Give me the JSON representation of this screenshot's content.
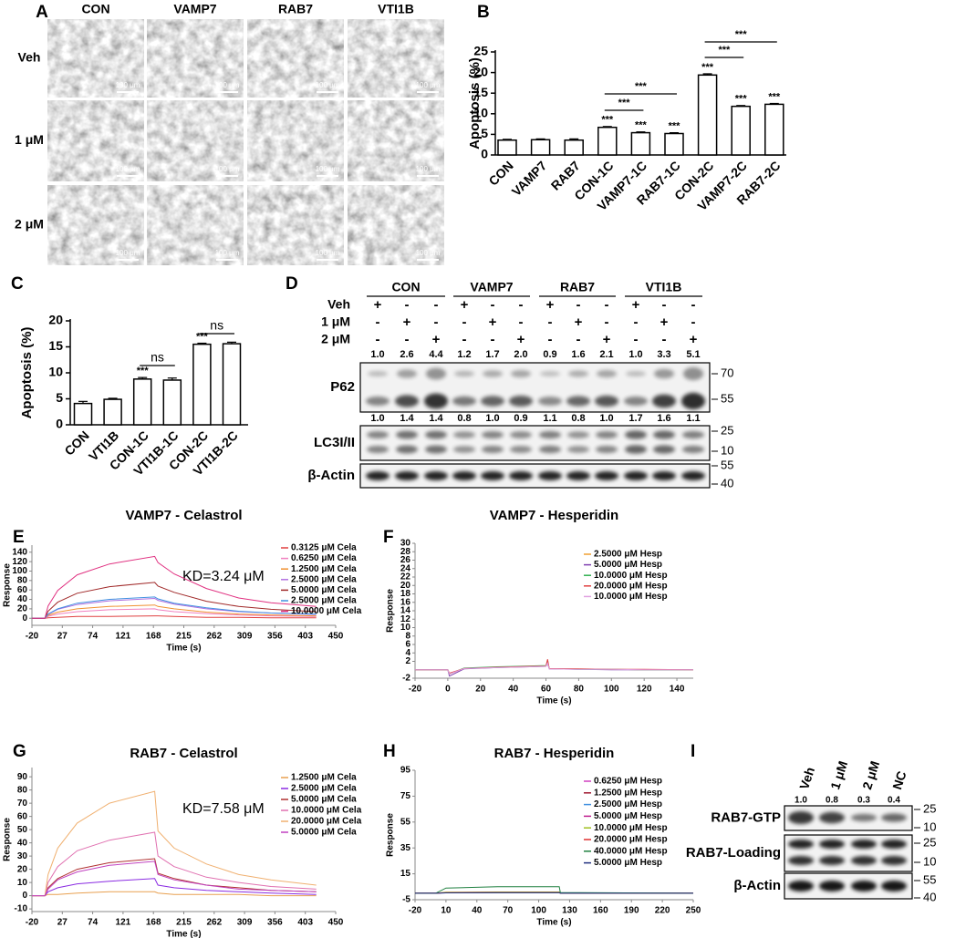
{
  "figure": {
    "panel_a": {
      "label": "A",
      "columns": [
        "CON",
        "VAMP7",
        "RAB7",
        "VTI1B"
      ],
      "rows": [
        "Veh",
        "1 μM",
        "2 μM"
      ],
      "scale_bar": "100 μm"
    },
    "panel_d": {
      "label": "D",
      "groups": [
        "CON",
        "VAMP7",
        "RAB7",
        "VTI1B"
      ],
      "treatments": [
        {
          "name": "Veh",
          "signs": [
            "+",
            "-",
            "-",
            "+",
            "-",
            "-",
            "+",
            "-",
            "-",
            "+",
            "-",
            "-"
          ]
        },
        {
          "name": "1 μM",
          "signs": [
            "-",
            "+",
            "-",
            "-",
            "+",
            "-",
            "-",
            "+",
            "-",
            "-",
            "+",
            "-"
          ]
        },
        {
          "name": "2 μM",
          "signs": [
            "-",
            "-",
            "+",
            "-",
            "-",
            "+",
            "-",
            "-",
            "+",
            "-",
            "-",
            "+"
          ]
        }
      ],
      "blots": [
        {
          "name": "P62",
          "quantities": [
            "1.0",
            "2.6",
            "4.4",
            "1.2",
            "1.7",
            "2.0",
            "0.9",
            "1.6",
            "2.1",
            "1.0",
            "3.3",
            "5.1"
          ],
          "markers": [
            70,
            55
          ]
        },
        {
          "name": "LC3I/II",
          "quantities": [
            "1.0",
            "1.4",
            "1.4",
            "0.8",
            "1.0",
            "0.9",
            "1.1",
            "0.8",
            "1.0",
            "1.7",
            "1.6",
            "1.1"
          ],
          "markers": [
            25,
            10
          ]
        },
        {
          "name": "β-Actin",
          "markers": [
            55,
            40
          ]
        }
      ]
    },
    "panel_i": {
      "label": "I",
      "lanes": [
        "Veh",
        "1 μM",
        "2 μM",
        "NC"
      ],
      "quantities": [
        "1.0",
        "0.8",
        "0.3",
        "0.4"
      ],
      "blots": [
        {
          "name": "RAB7-GTP",
          "markers": [
            25,
            10
          ]
        },
        {
          "name": "RAB7-Loading",
          "markers": [
            25,
            10
          ]
        },
        {
          "name": "β-Actin",
          "markers": [
            55,
            40
          ]
        }
      ]
    }
  },
  "chart_data": [
    {
      "type": "bar",
      "label": "B",
      "ylabel": "Apoptosis (%)",
      "categories": [
        "CON",
        "VAMP7",
        "RAB7",
        "CON-1C",
        "VAMP7-1C",
        "RAB7-1C",
        "CON-2C",
        "VAMP7-2C",
        "RAB7-2C"
      ],
      "values": [
        3.6,
        3.7,
        3.6,
        6.7,
        5.4,
        5.2,
        19.4,
        11.8,
        12.3
      ],
      "errors": [
        0.2,
        0.2,
        0.3,
        0.2,
        0.2,
        0.2,
        0.3,
        0.2,
        0.2
      ],
      "value_annotations": [
        null,
        null,
        null,
        "***",
        "***",
        "***",
        "***",
        "***",
        "***"
      ],
      "brackets": [
        {
          "groups": [
            "CON-1C",
            "VAMP7-1C"
          ],
          "label": "***"
        },
        {
          "groups": [
            "CON-1C",
            "RAB7-1C"
          ],
          "label": "***"
        },
        {
          "groups": [
            "CON-2C",
            "VAMP7-2C"
          ],
          "label": "***"
        },
        {
          "groups": [
            "CON-2C",
            "RAB7-2C"
          ],
          "label": "***"
        }
      ],
      "ylim": [
        0,
        25
      ],
      "yticks": [
        0,
        5,
        10,
        15,
        20,
        25
      ]
    },
    {
      "type": "bar",
      "label": "C",
      "ylabel": "Apoptosis (%)",
      "categories": [
        "CON",
        "VTI1B",
        "CON-1C",
        "VTI1B-1C",
        "CON-2C",
        "VTI1B-2C"
      ],
      "values": [
        4.1,
        4.9,
        8.8,
        8.6,
        15.5,
        15.6
      ],
      "errors": [
        0.4,
        0.2,
        0.3,
        0.4,
        0.2,
        0.3
      ],
      "value_annotations": [
        null,
        null,
        "***",
        null,
        "***",
        null
      ],
      "brackets": [
        {
          "groups": [
            "CON-1C",
            "VTI1B-1C"
          ],
          "label": "ns"
        },
        {
          "groups": [
            "CON-2C",
            "VTI1B-2C"
          ],
          "label": "ns"
        }
      ],
      "ylim": [
        0,
        20
      ],
      "yticks": [
        0,
        5,
        10,
        15,
        20
      ]
    },
    {
      "type": "line",
      "label": "E",
      "title": "VAMP7 - Celastrol",
      "annotation": "KD=3.24 μM",
      "xlabel": "Time (s)",
      "ylabel": "Response",
      "x": [
        -20,
        0,
        5,
        20,
        50,
        100,
        170,
        175,
        200,
        250,
        300,
        350,
        420
      ],
      "series": [
        {
          "name": "0.3125 μM Cela",
          "color": "#e04040",
          "values": [
            0,
            0,
            1,
            2,
            4,
            4,
            5,
            5,
            4,
            2,
            2,
            1,
            1
          ]
        },
        {
          "name": "0.6250 μM Cela",
          "color": "#f080c0",
          "values": [
            0,
            0,
            4,
            9,
            14,
            18,
            20,
            18,
            14,
            10,
            7,
            5,
            4
          ]
        },
        {
          "name": "1.2500 μM Cela",
          "color": "#f09030",
          "values": [
            0,
            0,
            6,
            13,
            20,
            25,
            28,
            25,
            20,
            13,
            9,
            7,
            5
          ]
        },
        {
          "name": "2.5000 μM Cela",
          "color": "#b070e0",
          "values": [
            0,
            0,
            8,
            19,
            29,
            37,
            42,
            38,
            30,
            20,
            14,
            11,
            8
          ]
        },
        {
          "name": "5.0000 μM Cela",
          "color": "#a02828",
          "values": [
            0,
            0,
            15,
            34,
            53,
            67,
            76,
            68,
            55,
            36,
            25,
            19,
            14
          ]
        },
        {
          "name": "2.5000 μM Cela",
          "color": "#4090e0",
          "values": [
            0,
            0,
            9,
            20,
            32,
            40,
            45,
            41,
            32,
            22,
            15,
            11,
            9
          ]
        },
        {
          "name": "10.0000 μM Cela",
          "color": "#e03080",
          "values": [
            0,
            0,
            26,
            59,
            92,
            115,
            131,
            118,
            94,
            63,
            43,
            33,
            25
          ]
        }
      ],
      "xlim": [
        -20,
        450
      ],
      "xticks": [
        -20,
        27,
        74,
        121,
        168,
        215,
        262,
        309,
        356,
        403,
        450
      ],
      "ylim": [
        -15,
        155
      ],
      "yticks": [
        0,
        20,
        40,
        60,
        80,
        100,
        120,
        140
      ]
    },
    {
      "type": "line",
      "label": "F",
      "title": "VAMP7 - Hesperidin",
      "xlabel": "Time (s)",
      "ylabel": "Response",
      "x": [
        -20,
        0,
        1,
        10,
        30,
        50,
        60,
        61,
        62,
        80,
        100,
        120,
        150
      ],
      "series": [
        {
          "name": "2.5000 μM Hesp",
          "color": "#f0a030",
          "values": [
            0,
            0,
            -1,
            0.3,
            0.6,
            0.8,
            0.9,
            2.2,
            0.3,
            0.2,
            0.1,
            0,
            0
          ]
        },
        {
          "name": "5.0000 μM Hesp",
          "color": "#8040b0",
          "values": [
            0,
            0,
            -1.5,
            0.2,
            0.5,
            0.7,
            0.8,
            1.5,
            0.2,
            0.1,
            0,
            0,
            0
          ]
        },
        {
          "name": "10.0000 μM Hesp",
          "color": "#30b050",
          "values": [
            0,
            0,
            -1,
            0.4,
            0.7,
            0.9,
            1,
            1.8,
            0.3,
            0.1,
            0.1,
            0,
            0
          ]
        },
        {
          "name": "20.0000 μM Hesp",
          "color": "#e04040",
          "values": [
            0,
            0,
            -0.8,
            0.3,
            0.6,
            0.8,
            0.9,
            2.5,
            0.3,
            0.2,
            0.1,
            0.1,
            0
          ]
        },
        {
          "name": "10.0000 μM Hesp",
          "color": "#e0a0e0",
          "values": [
            0,
            0,
            -1,
            0.3,
            0.5,
            0.7,
            0.8,
            1.6,
            0.2,
            0.1,
            0.1,
            0,
            0
          ]
        }
      ],
      "xlim": [
        -20,
        150
      ],
      "xticks": [
        -20,
        0,
        20,
        40,
        60,
        80,
        100,
        120,
        140
      ],
      "ylim": [
        -2,
        30
      ],
      "yticks": [
        -2,
        2,
        4,
        6,
        8,
        10,
        12,
        14,
        16,
        18,
        20,
        22,
        24,
        26,
        28,
        30
      ]
    },
    {
      "type": "line",
      "label": "G",
      "title": "RAB7 - Celastrol",
      "annotation": "KD=7.58 μM",
      "xlabel": "Time (s)",
      "ylabel": "Response",
      "x": [
        -20,
        0,
        5,
        20,
        50,
        100,
        170,
        175,
        200,
        250,
        300,
        350,
        420
      ],
      "series": [
        {
          "name": "1.2500 μM Cela",
          "color": "#e8a050",
          "values": [
            0,
            0,
            1,
            1,
            2,
            3,
            3,
            2,
            1,
            1,
            1,
            0,
            0
          ]
        },
        {
          "name": "2.5000 μM Cela",
          "color": "#8a2be2",
          "values": [
            0,
            0,
            3,
            6,
            9,
            11,
            13,
            8,
            6,
            4,
            3,
            2,
            1
          ]
        },
        {
          "name": "5.0000 μM Cela",
          "color": "#b03030",
          "values": [
            0,
            0,
            6,
            13,
            20,
            25,
            28,
            17,
            13,
            8,
            6,
            4,
            3
          ]
        },
        {
          "name": "10.0000 μM Cela",
          "color": "#e070b0",
          "values": [
            0,
            0,
            10,
            22,
            34,
            42,
            48,
            30,
            22,
            14,
            10,
            7,
            5
          ]
        },
        {
          "name": "20.0000 μM Cela",
          "color": "#f0b070",
          "values": [
            0,
            0,
            16,
            36,
            55,
            70,
            79,
            49,
            36,
            24,
            16,
            12,
            8
          ]
        },
        {
          "name": "5.0000 μM Cela",
          "color": "#c040c0",
          "values": [
            0,
            0,
            5,
            12,
            18,
            23,
            26,
            16,
            12,
            8,
            5,
            4,
            3
          ]
        }
      ],
      "xlim": [
        -20,
        450
      ],
      "xticks": [
        -20,
        27,
        74,
        121,
        168,
        215,
        262,
        309,
        356,
        403,
        450
      ],
      "ylim": [
        -12,
        97
      ],
      "yticks": [
        -10,
        0,
        10,
        20,
        30,
        40,
        50,
        60,
        70,
        80,
        90
      ]
    },
    {
      "type": "line",
      "label": "H",
      "title": "RAB7 - Hesperidin",
      "xlabel": "Time (s)",
      "ylabel": "Response",
      "x": [
        -20,
        0,
        10,
        60,
        120,
        121,
        250
      ],
      "series": [
        {
          "name": "0.6250 μM Hesp",
          "color": "#d040c0",
          "values": [
            0,
            0,
            0.5,
            0.6,
            0.6,
            0,
            0
          ]
        },
        {
          "name": "1.2500 μM Hesp",
          "color": "#a01830",
          "values": [
            0,
            0,
            0.4,
            0.5,
            0.5,
            0,
            0
          ]
        },
        {
          "name": "2.5000 μM Hesp",
          "color": "#4090e0",
          "values": [
            0,
            0,
            0.3,
            0.4,
            0.4,
            0,
            0
          ]
        },
        {
          "name": "5.0000 μM Hesp",
          "color": "#c02090",
          "values": [
            0,
            0,
            0.6,
            0.7,
            0.7,
            0,
            0
          ]
        },
        {
          "name": "10.0000 μM Hesp",
          "color": "#a0c020",
          "values": [
            0,
            0,
            0.8,
            1,
            1,
            0.2,
            0
          ]
        },
        {
          "name": "20.0000 μM Hesp",
          "color": "#e03030",
          "values": [
            0,
            0,
            0.5,
            0.6,
            0.6,
            0,
            0
          ]
        },
        {
          "name": "40.0000 μM Hesp",
          "color": "#208040",
          "values": [
            0,
            0,
            4,
            5,
            5,
            0.5,
            0
          ]
        },
        {
          "name": "5.0000 μM Hesp",
          "color": "#203080",
          "values": [
            0,
            0,
            0.3,
            0.4,
            0.4,
            0,
            0
          ]
        }
      ],
      "xlim": [
        -20,
        250
      ],
      "xticks": [
        -20,
        10,
        40,
        70,
        100,
        130,
        160,
        190,
        220,
        250
      ],
      "ylim": [
        -5,
        95
      ],
      "yticks": [
        -5,
        15,
        35,
        55,
        75,
        95
      ]
    }
  ]
}
